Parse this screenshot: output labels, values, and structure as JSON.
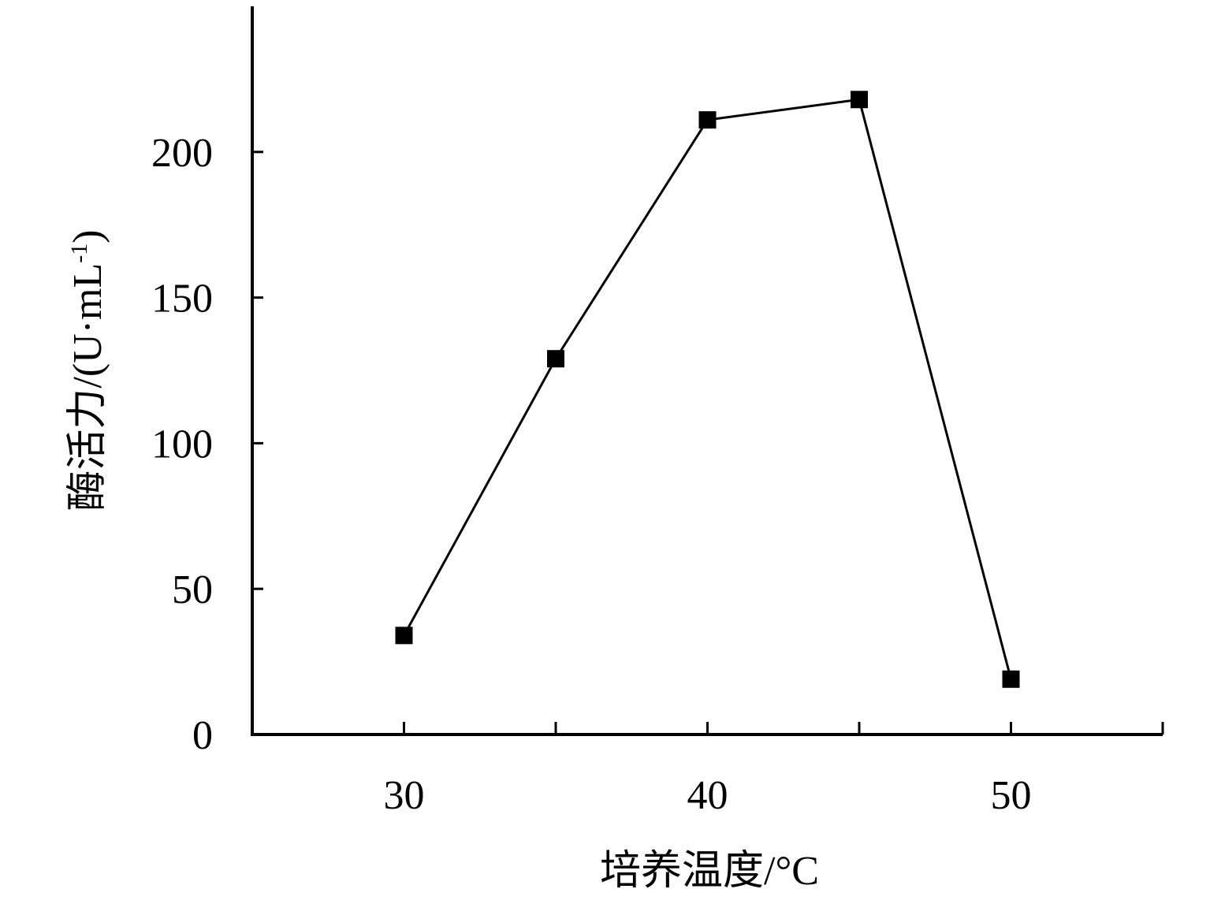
{
  "chart_data": {
    "type": "line",
    "x_label": "培养温度/°C",
    "y_label": {
      "text": "酶活力/(U·mL",
      "superscript": "-1",
      "close": ")"
    },
    "x": [
      30,
      35,
      40,
      45,
      50
    ],
    "series": [
      {
        "color": "#000000",
        "values": [
          34,
          129,
          211,
          218,
          19
        ]
      }
    ],
    "xlim": [
      25,
      55
    ],
    "xticks": [
      30,
      40,
      50
    ],
    "xminorticks": [
      35,
      45,
      55
    ],
    "ylim": [
      0,
      250
    ],
    "yticks": [
      0,
      50,
      100,
      150,
      200
    ],
    "marker": "square",
    "grid": false
  }
}
